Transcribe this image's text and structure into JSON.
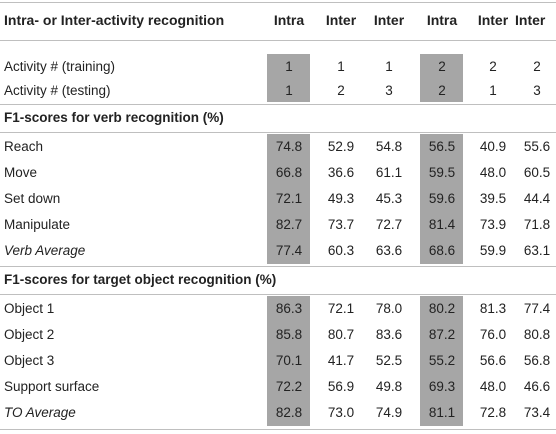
{
  "header": {
    "row_label": "Intra- or Inter-activity recognition",
    "columns": [
      "Intra",
      "Inter",
      "Inter",
      "Intra",
      "Inter",
      "Inter"
    ]
  },
  "activity_training": {
    "label": "Activity # (training)",
    "values": [
      "1",
      "1",
      "1",
      "2",
      "2",
      "2"
    ]
  },
  "activity_testing": {
    "label": "Activity # (testing)",
    "values": [
      "1",
      "2",
      "3",
      "2",
      "1",
      "3"
    ]
  },
  "verb_section": {
    "title": "F1-scores for verb recognition (%)",
    "rows": [
      {
        "label": "Reach",
        "values": [
          "74.8",
          "52.9",
          "54.8",
          "56.5",
          "40.9",
          "55.6"
        ]
      },
      {
        "label": "Move",
        "values": [
          "66.8",
          "36.6",
          "61.1",
          "59.5",
          "48.0",
          "60.5"
        ]
      },
      {
        "label": "Set down",
        "values": [
          "72.1",
          "49.3",
          "45.3",
          "59.6",
          "39.5",
          "44.4"
        ]
      },
      {
        "label": "Manipulate",
        "values": [
          "82.7",
          "73.7",
          "72.7",
          "81.4",
          "73.9",
          "71.8"
        ]
      },
      {
        "label": "Verb Average",
        "values": [
          "77.4",
          "60.3",
          "63.6",
          "68.6",
          "59.9",
          "63.1"
        ]
      }
    ]
  },
  "object_section": {
    "title": "F1-scores for target object recognition (%)",
    "rows": [
      {
        "label": "Object 1",
        "values": [
          "86.3",
          "72.1",
          "78.0",
          "80.2",
          "81.3",
          "77.4"
        ]
      },
      {
        "label": "Object 2",
        "values": [
          "85.8",
          "80.7",
          "83.6",
          "87.2",
          "76.0",
          "80.8"
        ]
      },
      {
        "label": "Object 3",
        "values": [
          "70.1",
          "41.7",
          "52.5",
          "55.2",
          "56.6",
          "56.8"
        ]
      },
      {
        "label": "Support surface",
        "values": [
          "72.2",
          "56.9",
          "49.8",
          "69.3",
          "48.0",
          "46.6"
        ]
      },
      {
        "label": "TO Average",
        "values": [
          "82.8",
          "73.0",
          "74.9",
          "81.1",
          "72.8",
          "73.4"
        ]
      }
    ]
  },
  "highlight_color": "#a6a6a6"
}
